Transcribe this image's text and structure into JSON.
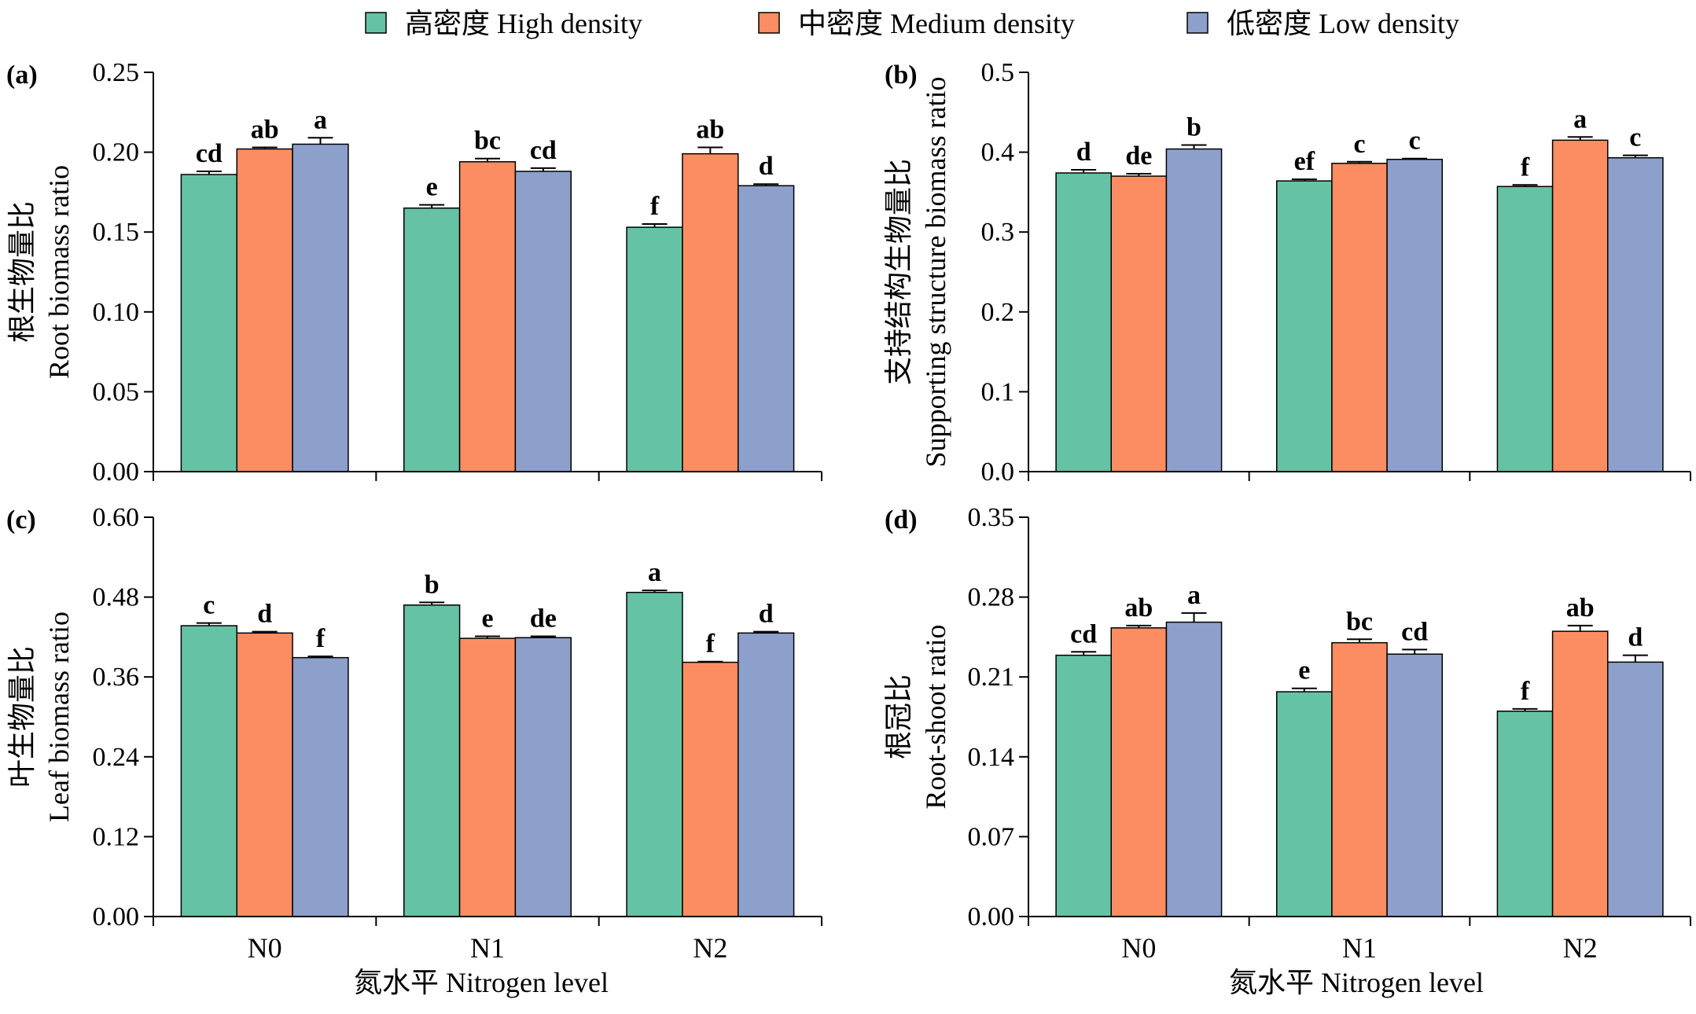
{
  "legend": [
    {
      "label": "高密度 High density",
      "color": "#66c2a5"
    },
    {
      "label": "中密度 Medium density",
      "color": "#fc8d62"
    },
    {
      "label": "低密度 Low density",
      "color": "#8da0cb"
    }
  ],
  "xaxis_title": "氮水平 Nitrogen level",
  "chart_data": [
    {
      "type": "bar",
      "panel": "(a)",
      "ylabel_cn": "根生物量比",
      "ylabel_en": "Root biomass ratio",
      "categories": [
        "N0",
        "N1",
        "N2"
      ],
      "ylim": [
        0,
        0.25
      ],
      "yticks": [
        "0.00",
        "0.05",
        "0.10",
        "0.15",
        "0.20",
        "0.25"
      ],
      "show_category_labels": false,
      "series": [
        {
          "name": "高密度 High density",
          "values": [
            0.186,
            0.165,
            0.153
          ],
          "errors": [
            0.002,
            0.002,
            0.002
          ],
          "letters": [
            "cd",
            "e",
            "f"
          ]
        },
        {
          "name": "中密度 Medium density",
          "values": [
            0.202,
            0.194,
            0.199
          ],
          "errors": [
            0.001,
            0.002,
            0.004
          ],
          "letters": [
            "ab",
            "bc",
            "ab"
          ]
        },
        {
          "name": "低密度 Low density",
          "values": [
            0.205,
            0.188,
            0.179
          ],
          "errors": [
            0.004,
            0.002,
            0.001
          ],
          "letters": [
            "a",
            "cd",
            "d"
          ]
        }
      ]
    },
    {
      "type": "bar",
      "panel": "(b)",
      "ylabel_cn": "支持结构生物量比",
      "ylabel_en": "Supporting structure biomass ratio",
      "categories": [
        "N0",
        "N1",
        "N2"
      ],
      "ylim": [
        0,
        0.5
      ],
      "yticks": [
        "0.0",
        "0.1",
        "0.2",
        "0.3",
        "0.4",
        "0.5"
      ],
      "show_category_labels": false,
      "series": [
        {
          "name": "高密度 High density",
          "values": [
            0.374,
            0.364,
            0.357
          ],
          "errors": [
            0.004,
            0.002,
            0.002
          ],
          "letters": [
            "d",
            "ef",
            "f"
          ]
        },
        {
          "name": "中密度 Medium density",
          "values": [
            0.37,
            0.386,
            0.415
          ],
          "errors": [
            0.003,
            0.002,
            0.004
          ],
          "letters": [
            "de",
            "c",
            "a"
          ]
        },
        {
          "name": "低密度 Low density",
          "values": [
            0.404,
            0.391,
            0.393
          ],
          "errors": [
            0.005,
            0.001,
            0.003
          ],
          "letters": [
            "b",
            "c",
            "c"
          ]
        }
      ]
    },
    {
      "type": "bar",
      "panel": "(c)",
      "ylabel_cn": "叶生物量比",
      "ylabel_en": "Leaf biomass ratio",
      "categories": [
        "N0",
        "N1",
        "N2"
      ],
      "ylim": [
        0,
        0.6
      ],
      "yticks": [
        "0.00",
        "0.12",
        "0.24",
        "0.36",
        "0.48",
        "0.60"
      ],
      "show_category_labels": true,
      "series": [
        {
          "name": "高密度 High density",
          "values": [
            0.437,
            0.468,
            0.487
          ],
          "errors": [
            0.004,
            0.004,
            0.003
          ],
          "letters": [
            "c",
            "b",
            "a"
          ]
        },
        {
          "name": "中密度 Medium density",
          "values": [
            0.426,
            0.418,
            0.382
          ],
          "errors": [
            0.002,
            0.003,
            0.001
          ],
          "letters": [
            "d",
            "e",
            "f"
          ]
        },
        {
          "name": "低密度 Low density",
          "values": [
            0.389,
            0.419,
            0.426
          ],
          "errors": [
            0.002,
            0.002,
            0.002
          ],
          "letters": [
            "f",
            "de",
            "d"
          ]
        }
      ]
    },
    {
      "type": "bar",
      "panel": "(d)",
      "ylabel_cn": "根冠比",
      "ylabel_en": "Root-shoot ratio",
      "categories": [
        "N0",
        "N1",
        "N2"
      ],
      "ylim": [
        0,
        0.35
      ],
      "yticks": [
        "0.00",
        "0.07",
        "0.14",
        "0.21",
        "0.28",
        "0.35"
      ],
      "show_category_labels": true,
      "series": [
        {
          "name": "高密度 High density",
          "values": [
            0.229,
            0.197,
            0.18
          ],
          "errors": [
            0.003,
            0.003,
            0.002
          ],
          "letters": [
            "cd",
            "e",
            "f"
          ]
        },
        {
          "name": "中密度 Medium density",
          "values": [
            0.253,
            0.24,
            0.25
          ],
          "errors": [
            0.002,
            0.003,
            0.005
          ],
          "letters": [
            "ab",
            "bc",
            "ab"
          ]
        },
        {
          "name": "低密度 Low density",
          "values": [
            0.258,
            0.23,
            0.223
          ],
          "errors": [
            0.008,
            0.004,
            0.006
          ],
          "letters": [
            "a",
            "cd",
            "d"
          ]
        }
      ]
    }
  ]
}
